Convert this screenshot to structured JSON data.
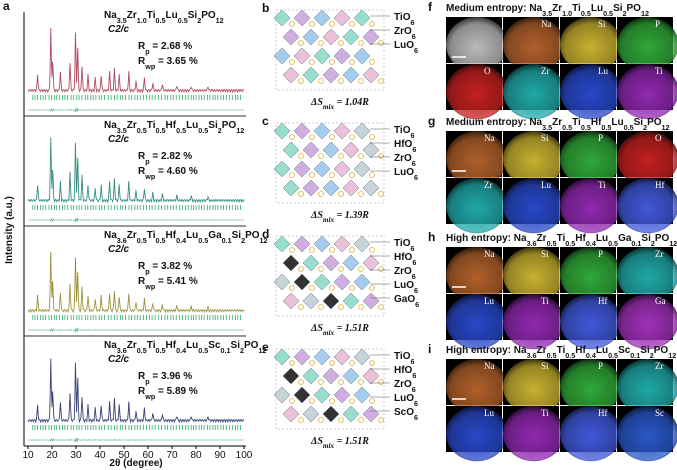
{
  "panels": {
    "a": {
      "label": "a",
      "ylabel": "Intensity (a.u.)",
      "xlabel": "2θ (degree)",
      "xlim": [
        10,
        100
      ],
      "xticks": [
        10,
        20,
        30,
        40,
        50,
        60,
        70,
        80,
        90,
        100
      ],
      "patterns": [
        {
          "formula": "Na3.5Zr1.0Ti0.5Lu0.5Si2PO12",
          "space_group": "C2/c",
          "rp": {
            "sym": "R",
            "sub": "p",
            "text": " = 2.68 %"
          },
          "rwp": {
            "sym": "R",
            "sub": "wp",
            "text": " = 3.65 %"
          },
          "color": "#c8506a"
        },
        {
          "formula": "Na3.5Zr0.5Ti0.5Hf0.5Lu0.5Si2PO12",
          "space_group": "C2/c",
          "rp": {
            "sym": "R",
            "sub": "p",
            "text": " = 2.82 %"
          },
          "rwp": {
            "sym": "R",
            "sub": "wp",
            "text": " = 4.60 %"
          },
          "color": "#3aa08e"
        },
        {
          "formula": "Na3.6Zr0.5Ti0.5Hf0.4Lu0.5Ga0.1Si2PO12",
          "space_group": "C2/c",
          "rp": {
            "sym": "R",
            "sub": "p",
            "text": " = 3.82 %"
          },
          "rwp": {
            "sym": "R",
            "sub": "wp",
            "text": " = 5.41 %"
          },
          "color": "#b4a640"
        },
        {
          "formula": "Na3.6Zr0.5Ti0.5Hf0.4Lu0.5Sc0.1Si2PO12",
          "space_group": "C2/c",
          "rp": {
            "sym": "R",
            "sub": "p",
            "text": " = 3.96 %"
          },
          "rwp": {
            "sym": "R",
            "sub": "wp",
            "text": " = 5.89 %"
          },
          "color": "#3d4585"
        }
      ]
    },
    "structures": [
      {
        "label": "b",
        "legend": [
          "TiO6",
          "ZrO6",
          "LuO6"
        ],
        "entropy": {
          "text": "ΔS",
          "sub": "mix",
          "value": " = 1.04R"
        }
      },
      {
        "label": "c",
        "legend": [
          "TiO6",
          "HfO6",
          "ZrO6",
          "LuO6"
        ],
        "entropy": {
          "text": "ΔS",
          "sub": "mix",
          "value": " = 1.39R"
        }
      },
      {
        "label": "d",
        "legend": [
          "TiO6",
          "HfO6",
          "ZrO6",
          "LuO6",
          "GaO6"
        ],
        "entropy": {
          "text": "ΔS",
          "sub": "mix",
          "value": " = 1.51R"
        }
      },
      {
        "label": "e",
        "legend": [
          "TiO6",
          "HfO6",
          "ZrO6",
          "LuO6",
          "ScO6"
        ],
        "entropy": {
          "text": "ΔS",
          "sub": "mix",
          "value": " = 1.51R"
        }
      }
    ],
    "maps": [
      {
        "label": "f",
        "title": "Medium entropy: Na3.5Zr1.0Ti0.5Lu0.5Si2PO12",
        "tiles": [
          {
            "name": "",
            "color": "#bbbbbb"
          },
          {
            "name": "Na",
            "color": "#b0602a"
          },
          {
            "name": "Si",
            "color": "#c8b030"
          },
          {
            "name": "P",
            "color": "#30a838"
          },
          {
            "name": "O",
            "color": "#c42020"
          },
          {
            "name": "Zr",
            "color": "#20a8a8"
          },
          {
            "name": "Lu",
            "color": "#2848c8"
          },
          {
            "name": "Ti",
            "color": "#9028b0"
          }
        ]
      },
      {
        "label": "g",
        "title": "Medium entropy: Na3.5Zr0.5Ti0.5Hf0.5Lu0.5Si2PO12",
        "tiles": [
          {
            "name": "Na",
            "color": "#b0602a"
          },
          {
            "name": "Si",
            "color": "#c8b030"
          },
          {
            "name": "P",
            "color": "#30a838"
          },
          {
            "name": "O",
            "color": "#c42020"
          },
          {
            "name": "Zr",
            "color": "#20a8a8"
          },
          {
            "name": "Lu",
            "color": "#2848c8"
          },
          {
            "name": "Ti",
            "color": "#9028b0"
          },
          {
            "name": "Hf",
            "color": "#4058d8"
          }
        ]
      },
      {
        "label": "h",
        "title": "High entropy: Na3.6Zr0.5Ti0.5Hf0.4Lu0.5Ga0.1Si2PO12",
        "tiles": [
          {
            "name": "Na",
            "color": "#b0602a"
          },
          {
            "name": "Si",
            "color": "#c8b030"
          },
          {
            "name": "P",
            "color": "#30a838"
          },
          {
            "name": "Zr",
            "color": "#20a8a8"
          },
          {
            "name": "Lu",
            "color": "#2848c8"
          },
          {
            "name": "Ti",
            "color": "#9028b0"
          },
          {
            "name": "Hf",
            "color": "#4058d8"
          },
          {
            "name": "Ga",
            "color": "#a030b8"
          }
        ]
      },
      {
        "label": "i",
        "title": "High entropy: Na3.6Zr0.5Ti0.5Hf0.4Lu0.5Sc0.1Si2PO12",
        "tiles": [
          {
            "name": "Na",
            "color": "#b0602a"
          },
          {
            "name": "Si",
            "color": "#c8b030"
          },
          {
            "name": "P",
            "color": "#30a838"
          },
          {
            "name": "Zr",
            "color": "#20a8a8"
          },
          {
            "name": "Lu",
            "color": "#2848c8"
          },
          {
            "name": "Ti",
            "color": "#9028b0"
          },
          {
            "name": "Hf",
            "color": "#4058d8"
          },
          {
            "name": "Sc",
            "color": "#2858c8"
          }
        ]
      }
    ]
  }
}
